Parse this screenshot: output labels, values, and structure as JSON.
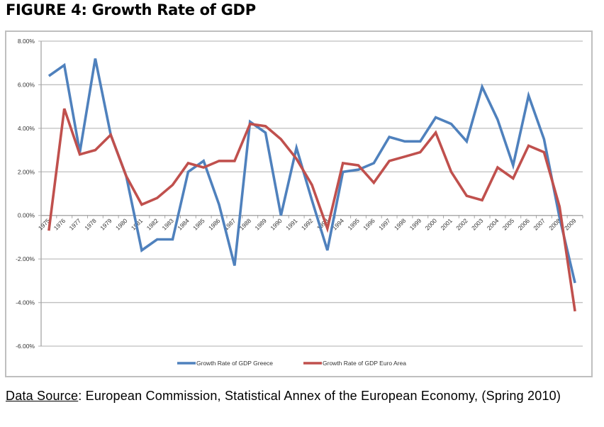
{
  "figure_title": "FIGURE 4: Growth Rate of GDP",
  "source": {
    "label": "Data Source",
    "text": ": European Commission, Statistical Annex of the European Economy, (Spring 2010)"
  },
  "chart_data": {
    "type": "line",
    "title": "FIGURE 4: Growth Rate of GDP",
    "xlabel": "",
    "ylabel": "",
    "ylim": [
      -6,
      8
    ],
    "yticks": [
      8,
      6,
      4,
      2,
      0,
      -2,
      -4,
      -6
    ],
    "ytick_labels": [
      "8.00%",
      "6.00%",
      "4.00%",
      "2.00%",
      "0.00%",
      "-2.00%",
      "-4.00%",
      "-6.00%"
    ],
    "grid": true,
    "legend_position": "bottom",
    "x": [
      "1975",
      "1976",
      "1977",
      "1978",
      "1979",
      "1980",
      "1981",
      "1982",
      "1983",
      "1984",
      "1985",
      "1986",
      "1987",
      "1988",
      "1989",
      "1990",
      "1991",
      "1992",
      "1993",
      "1994",
      "1995",
      "1996",
      "1997",
      "1998",
      "1999",
      "2000",
      "2001",
      "2002",
      "2003",
      "2004",
      "2005",
      "2006",
      "2007",
      "2008",
      "2009"
    ],
    "series": [
      {
        "name": "Growth Rate of GDP Greece",
        "color": "#4f81bd",
        "values": [
          6.4,
          6.9,
          2.9,
          7.2,
          3.7,
          1.8,
          -1.6,
          -1.1,
          -1.1,
          2.0,
          2.5,
          0.5,
          -2.3,
          4.3,
          3.8,
          0.0,
          3.1,
          0.7,
          -1.6,
          2.0,
          2.1,
          2.4,
          3.6,
          3.4,
          3.4,
          4.5,
          4.2,
          3.4,
          5.9,
          4.4,
          2.3,
          5.5,
          3.5,
          -0.1,
          -3.1
        ]
      },
      {
        "name": "Growth Rate of GDP Euro Area",
        "color": "#c0504d",
        "values": [
          -0.7,
          4.9,
          2.8,
          3.0,
          3.7,
          1.8,
          0.5,
          0.8,
          1.4,
          2.4,
          2.2,
          2.5,
          2.5,
          4.2,
          4.1,
          3.5,
          2.6,
          1.4,
          -0.6,
          2.4,
          2.3,
          1.5,
          2.5,
          2.7,
          2.9,
          3.8,
          2.0,
          0.9,
          0.7,
          2.2,
          1.7,
          3.2,
          2.9,
          0.4,
          -4.4
        ]
      }
    ]
  }
}
